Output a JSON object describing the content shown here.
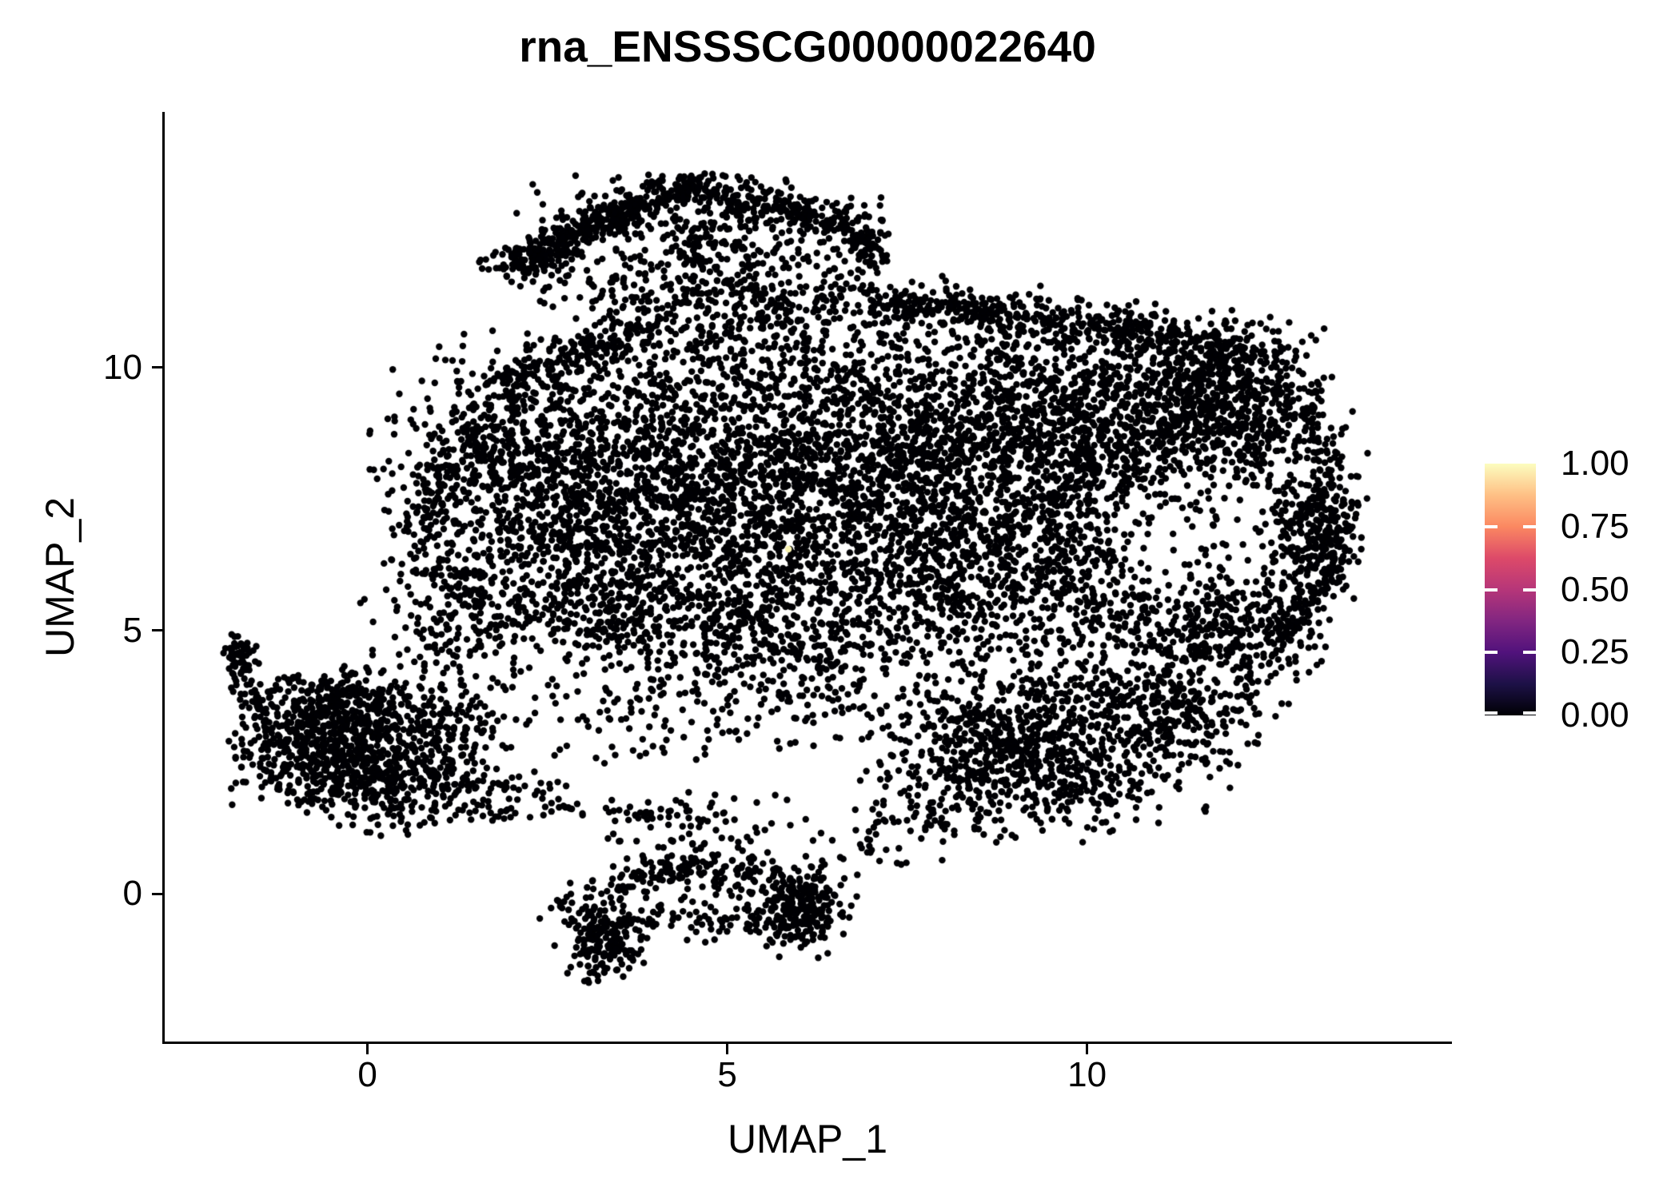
{
  "title": "rna_ENSSSCG00000022640",
  "colors": {
    "background": "#FFFFFF",
    "text": "#000000",
    "axis": "#000000",
    "point": "#000004",
    "highlight": "#F8F3B0"
  },
  "axes": {
    "x": {
      "label": "UMAP_1",
      "tick_labels": [
        "0",
        "5",
        "10"
      ],
      "tick_values": [
        0,
        5,
        10
      ],
      "range": [
        -2.83,
        15.06
      ]
    },
    "y": {
      "label": "UMAP_2",
      "tick_labels": [
        "0",
        "5",
        "10"
      ],
      "tick_values": [
        0,
        5,
        10
      ],
      "range": [
        -2.81,
        14.86
      ]
    }
  },
  "legend": {
    "tick_labels": [
      "1.00",
      "0.75",
      "0.50",
      "0.25",
      "0.00"
    ],
    "tick_values": [
      1.0,
      0.75,
      0.5,
      0.25,
      0.0
    ],
    "tick_mark_values": [
      0.75,
      0.5,
      0.25,
      0.0
    ],
    "colormap": "magma",
    "gradient_stops": [
      [
        0,
        "#000004"
      ],
      [
        0.125,
        "#1D1147"
      ],
      [
        0.25,
        "#51127C"
      ],
      [
        0.375,
        "#822681"
      ],
      [
        0.5,
        "#B63679"
      ],
      [
        0.625,
        "#DD4A69"
      ],
      [
        0.75,
        "#FB8861"
      ],
      [
        0.875,
        "#FEC085"
      ],
      [
        1,
        "#FCFDBF"
      ]
    ]
  },
  "chart_data": {
    "type": "scatter",
    "title": "rna_ENSSSCG00000022640",
    "xlabel": "UMAP_1",
    "ylabel": "UMAP_2",
    "xlim": [
      -2.83,
      15.06
    ],
    "ylim": [
      -2.81,
      14.86
    ],
    "x_ticks": [
      0,
      5,
      10
    ],
    "y_ticks": [
      0,
      5,
      10
    ],
    "grid": false,
    "legend_position": "right",
    "point_color": "#000004",
    "point_radius_px": 4.2,
    "seed": 1337,
    "n_points_total": 13790,
    "highlight_points": [
      {
        "x": 5.85,
        "y": 6.55,
        "value": 1.0,
        "color": "#F8F3B0"
      }
    ],
    "clusters": [
      {
        "kind": "gauss",
        "cx": 2.7,
        "cy": 7.7,
        "sx": 1.25,
        "sy": 1.35,
        "n": 1250
      },
      {
        "kind": "gauss",
        "cx": 5.3,
        "cy": 8.9,
        "sx": 1.35,
        "sy": 1.15,
        "n": 950
      },
      {
        "kind": "gauss",
        "cx": 7.9,
        "cy": 8.1,
        "sx": 1.35,
        "sy": 1.35,
        "n": 1350
      },
      {
        "kind": "gauss",
        "cx": 5.1,
        "cy": 6.4,
        "sx": 1.5,
        "sy": 1.0,
        "n": 750
      },
      {
        "kind": "gauss",
        "cx": 9.8,
        "cy": 9.2,
        "sx": 1.3,
        "sy": 0.95,
        "n": 800
      },
      {
        "kind": "gauss",
        "cx": 11.7,
        "cy": 9.3,
        "sx": 0.8,
        "sy": 0.7,
        "n": 300
      },
      {
        "kind": "gauss",
        "cx": 6.0,
        "cy": 4.8,
        "sx": 1.3,
        "sy": 0.8,
        "n": 420
      },
      {
        "kind": "gauss",
        "cx": 8.7,
        "cy": 6.0,
        "sx": 1.0,
        "sy": 0.9,
        "n": 450
      },
      {
        "kind": "gauss",
        "cx": 4.0,
        "cy": 3.4,
        "sx": 1.5,
        "sy": 0.5,
        "n": 150
      },
      {
        "kind": "ring",
        "cx": 11.5,
        "cy": 6.8,
        "r0": 1.15,
        "r1": 2.15,
        "aspect": 1.1,
        "n": 520
      },
      {
        "kind": "rect",
        "x0": 10.6,
        "x1": 12.4,
        "y0": 5.9,
        "y1": 7.7,
        "n": 45
      },
      {
        "kind": "gauss",
        "cx": 13.15,
        "cy": 7.0,
        "sx": 0.35,
        "sy": 0.55,
        "n": 150
      },
      {
        "kind": "line",
        "x1": 13.4,
        "y1": 6.2,
        "x2": 13.5,
        "y2": 7.7,
        "jitter": 0.12,
        "n": 70
      },
      {
        "kind": "gauss",
        "cx": 8.6,
        "cy": 2.6,
        "sx": 0.8,
        "sy": 0.7,
        "n": 450
      },
      {
        "kind": "gauss",
        "cx": 9.9,
        "cy": 3.3,
        "sx": 0.9,
        "sy": 0.8,
        "n": 450
      },
      {
        "kind": "gauss",
        "cx": 11.2,
        "cy": 3.4,
        "sx": 0.6,
        "sy": 0.7,
        "n": 220
      },
      {
        "kind": "line",
        "x1": 7.8,
        "y1": 1.3,
        "x2": 10.6,
        "y2": 1.8,
        "jitter": 0.3,
        "n": 90
      },
      {
        "kind": "gauss",
        "cx": 11.9,
        "cy": 4.9,
        "sx": 0.7,
        "sy": 0.8,
        "n": 260
      },
      {
        "kind": "line",
        "x1": 12.6,
        "y1": 4.6,
        "x2": 13.3,
        "y2": 6.4,
        "jitter": 0.22,
        "n": 110
      },
      {
        "kind": "line",
        "x1": 6.9,
        "y1": 11.25,
        "x2": 9.2,
        "y2": 10.95,
        "jitter": 0.22,
        "n": 220
      },
      {
        "kind": "line",
        "x1": 9.2,
        "y1": 10.95,
        "x2": 12.3,
        "y2": 10.3,
        "jitter": 0.25,
        "n": 270
      },
      {
        "kind": "gauss",
        "cx": 12.0,
        "cy": 9.7,
        "sx": 0.6,
        "sy": 0.6,
        "n": 220
      },
      {
        "kind": "line",
        "x1": 12.85,
        "y1": 9.4,
        "x2": 13.35,
        "y2": 8.2,
        "jitter": 0.2,
        "n": 90
      },
      {
        "kind": "line",
        "x1": 1.9,
        "y1": 9.7,
        "x2": 4.2,
        "y2": 10.9,
        "jitter": 0.25,
        "n": 160
      },
      {
        "kind": "line",
        "x1": 0.55,
        "y1": 6.6,
        "x2": 1.75,
        "y2": 9.4,
        "jitter": 0.22,
        "n": 160
      },
      {
        "kind": "line",
        "x1": 0.8,
        "y1": 6.2,
        "x2": 2.3,
        "y2": 5.2,
        "jitter": 0.25,
        "n": 100
      },
      {
        "kind": "gauss",
        "cx": 3.4,
        "cy": 5.1,
        "sx": 0.8,
        "sy": 0.5,
        "n": 150
      },
      {
        "kind": "gauss",
        "cx": 5.3,
        "cy": 11.1,
        "sx": 1.0,
        "sy": 0.45,
        "n": 200
      },
      {
        "kind": "line",
        "x1": 1.95,
        "y1": 11.95,
        "x2": 4.35,
        "y2": 13.45,
        "jitter": 0.16,
        "n": 330
      },
      {
        "kind": "line",
        "x1": 4.35,
        "y1": 13.45,
        "x2": 6.85,
        "y2": 12.65,
        "jitter": 0.2,
        "n": 270
      },
      {
        "kind": "gauss",
        "cx": 4.6,
        "cy": 12.35,
        "sx": 1.2,
        "sy": 0.6,
        "n": 330
      },
      {
        "kind": "gauss",
        "cx": 2.15,
        "cy": 12.0,
        "sx": 0.28,
        "sy": 0.22,
        "n": 60
      },
      {
        "kind": "line",
        "x1": 6.85,
        "y1": 12.65,
        "x2": 7.1,
        "y2": 11.95,
        "jitter": 0.15,
        "n": 60
      },
      {
        "kind": "rect",
        "x0": 2.3,
        "x1": 6.7,
        "y0": 11.0,
        "y1": 12.2,
        "n": 90
      },
      {
        "kind": "gauss",
        "cx": -0.75,
        "cy": 2.9,
        "sx": 0.55,
        "sy": 0.6,
        "n": 430
      },
      {
        "kind": "gauss",
        "cx": 0.3,
        "cy": 2.3,
        "sx": 0.6,
        "sy": 0.55,
        "n": 430
      },
      {
        "kind": "gauss",
        "cx": -0.2,
        "cy": 3.6,
        "sx": 0.5,
        "sy": 0.35,
        "n": 190
      },
      {
        "kind": "line",
        "x1": -1.85,
        "y1": 4.65,
        "x2": -1.5,
        "y2": 3.5,
        "jitter": 0.12,
        "n": 60
      },
      {
        "kind": "gauss",
        "cx": -1.75,
        "cy": 4.6,
        "sx": 0.12,
        "sy": 0.15,
        "n": 25
      },
      {
        "kind": "gauss",
        "cx": 0.95,
        "cy": 3.35,
        "sx": 0.45,
        "sy": 0.45,
        "n": 110
      },
      {
        "kind": "line",
        "x1": 1.3,
        "y1": 1.6,
        "x2": 5.0,
        "y2": 1.5,
        "jitter": 0.12,
        "n": 80
      },
      {
        "kind": "line",
        "x1": 1.0,
        "y1": 2.15,
        "x2": 2.7,
        "y2": 2.0,
        "jitter": 0.1,
        "n": 40
      },
      {
        "kind": "gauss",
        "cx": 1.2,
        "cy": 4.8,
        "sx": 0.6,
        "sy": 0.5,
        "n": 90
      },
      {
        "kind": "gauss",
        "cx": 3.3,
        "cy": -0.95,
        "sx": 0.25,
        "sy": 0.35,
        "n": 160
      },
      {
        "kind": "line",
        "x1": 2.7,
        "y1": -0.2,
        "x2": 4.6,
        "y2": 0.6,
        "jitter": 0.2,
        "n": 110
      },
      {
        "kind": "line",
        "x1": 4.6,
        "y1": 0.6,
        "x2": 6.3,
        "y2": -0.1,
        "jitter": 0.25,
        "n": 130
      },
      {
        "kind": "line",
        "x1": 2.9,
        "y1": -0.6,
        "x2": 6.2,
        "y2": -0.5,
        "jitter": 0.18,
        "n": 120
      },
      {
        "kind": "gauss",
        "cx": 6.05,
        "cy": -0.35,
        "sx": 0.3,
        "sy": 0.4,
        "n": 160
      },
      {
        "kind": "gauss",
        "cx": 4.65,
        "cy": 1.15,
        "sx": 0.8,
        "sy": 0.4,
        "n": 60
      },
      {
        "kind": "line",
        "x1": 6.5,
        "y1": 0.5,
        "x2": 7.8,
        "y2": 1.8,
        "jitter": 0.3,
        "n": 50
      }
    ]
  }
}
